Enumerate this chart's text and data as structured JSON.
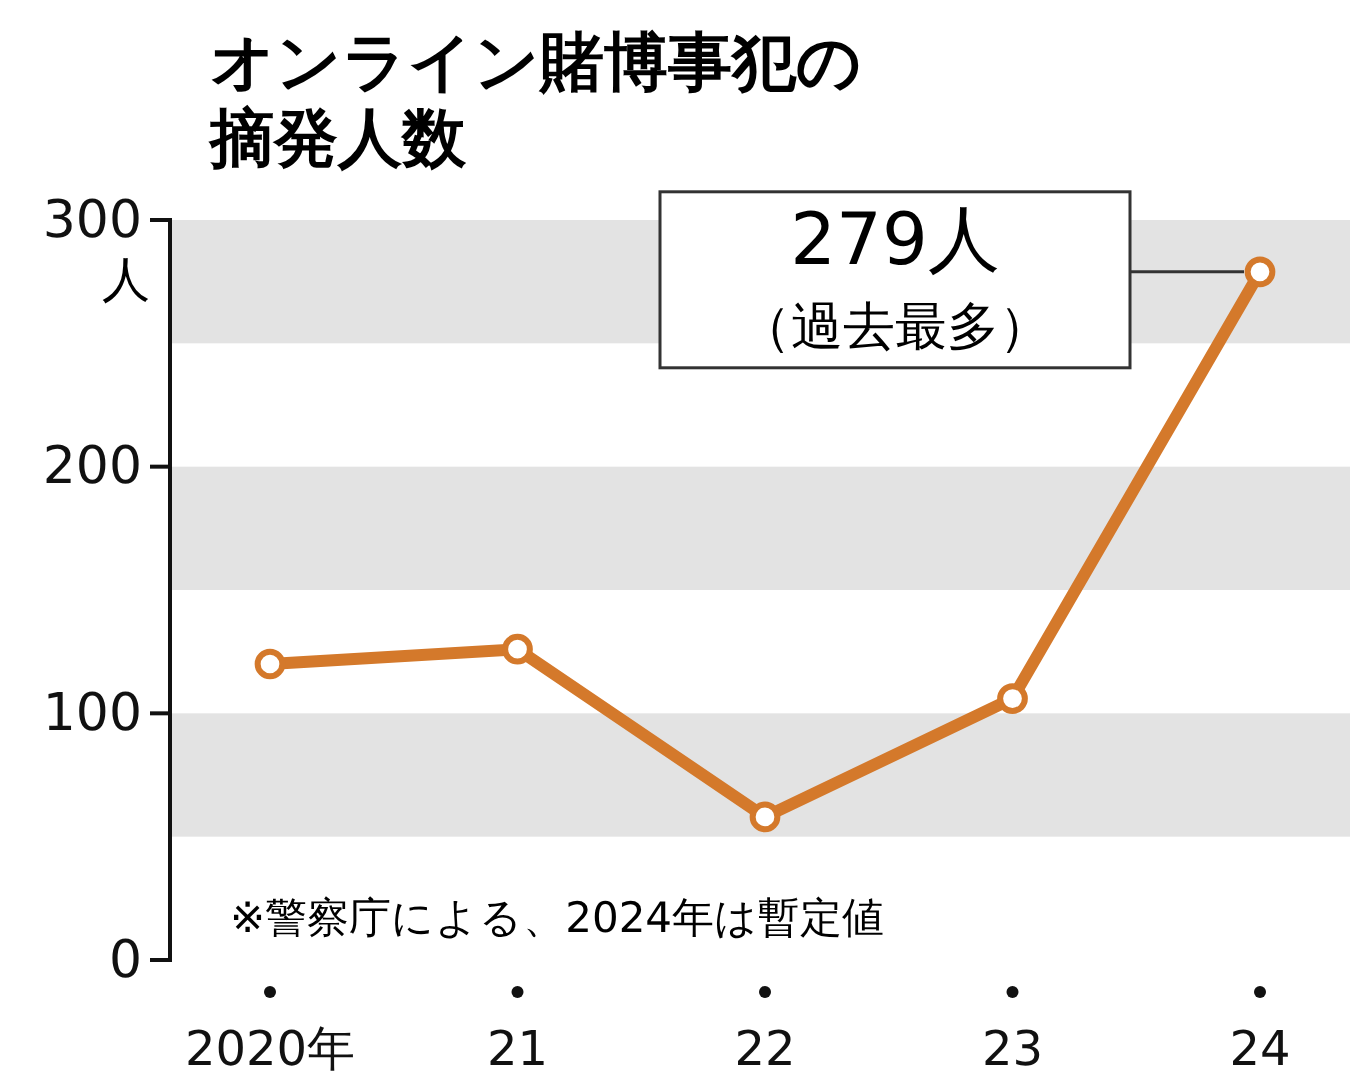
{
  "chart_data": {
    "type": "line",
    "title": "オンライン賭博事犯の摘発人数",
    "ylabel": "人",
    "categories": [
      "2020年",
      "21",
      "22",
      "23",
      "24"
    ],
    "series": [
      {
        "color": "#d4792b",
        "values": [
          120,
          126,
          58,
          106,
          279
        ]
      }
    ],
    "ylim": [
      0,
      300
    ],
    "yticks": [
      0,
      100,
      200,
      300
    ],
    "marker": "circle",
    "bands": [
      {
        "axis": "y",
        "from": 50,
        "to": 100,
        "color": "#e3e3e3"
      },
      {
        "axis": "y",
        "from": 150,
        "to": 200,
        "color": "#e3e3e3"
      },
      {
        "axis": "y",
        "from": 250,
        "to": 300,
        "color": "#e3e3e3"
      }
    ],
    "annotations": [
      "279人",
      "（過去最多）",
      "※警察庁による、2024年は暫定値"
    ]
  }
}
